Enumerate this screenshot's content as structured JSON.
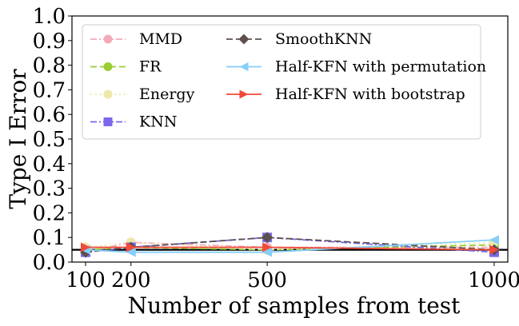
{
  "chart_data": {
    "type": "line",
    "xlabel": "Number of samples from test",
    "ylabel": "Type I Error",
    "xlim": [
      70,
      1030
    ],
    "ylim": [
      0.0,
      1.0
    ],
    "x_ticks": [
      100,
      200,
      500,
      1000
    ],
    "y_ticks": [
      0.0,
      0.1,
      0.2,
      0.3,
      0.4,
      0.5,
      0.6,
      0.7,
      0.8,
      0.9,
      1.0
    ],
    "x": [
      100,
      200,
      500,
      1000
    ],
    "reference_line": {
      "y": 0.05,
      "color": "#000000"
    },
    "series": [
      {
        "name": "MMD",
        "values": [
          0.04,
          0.08,
          0.06,
          0.06
        ],
        "color": "#f4aab9",
        "dash": "dashdot",
        "marker": "circle"
      },
      {
        "name": "FR",
        "values": [
          0.05,
          0.06,
          0.05,
          0.07
        ],
        "color": "#9acd32",
        "dash": "dashed",
        "marker": "circle"
      },
      {
        "name": "Energy",
        "values": [
          0.06,
          0.08,
          0.05,
          0.08
        ],
        "color": "#eee8aa",
        "dash": "dotted",
        "marker": "circle"
      },
      {
        "name": "KNN",
        "values": [
          0.04,
          0.06,
          0.1,
          0.04
        ],
        "color": "#7b68ee",
        "dash": "dashdot",
        "marker": "square"
      },
      {
        "name": "SmoothKNN",
        "values": [
          0.04,
          0.06,
          0.1,
          0.05
        ],
        "color": "#5d504d",
        "dash": "dashed",
        "marker": "diamond"
      },
      {
        "name": "Half-KFN with permutation",
        "values": [
          0.05,
          0.04,
          0.04,
          0.09
        ],
        "color": "#87cefa",
        "dash": "solid",
        "marker": "triangle-left"
      },
      {
        "name": "Half-KFN with bootstrap",
        "values": [
          0.06,
          0.06,
          0.06,
          0.05
        ],
        "color": "#f04a3a",
        "dash": "solid",
        "marker": "triangle-right"
      }
    ],
    "legend": {
      "position": "top-left",
      "columns": 2
    }
  }
}
